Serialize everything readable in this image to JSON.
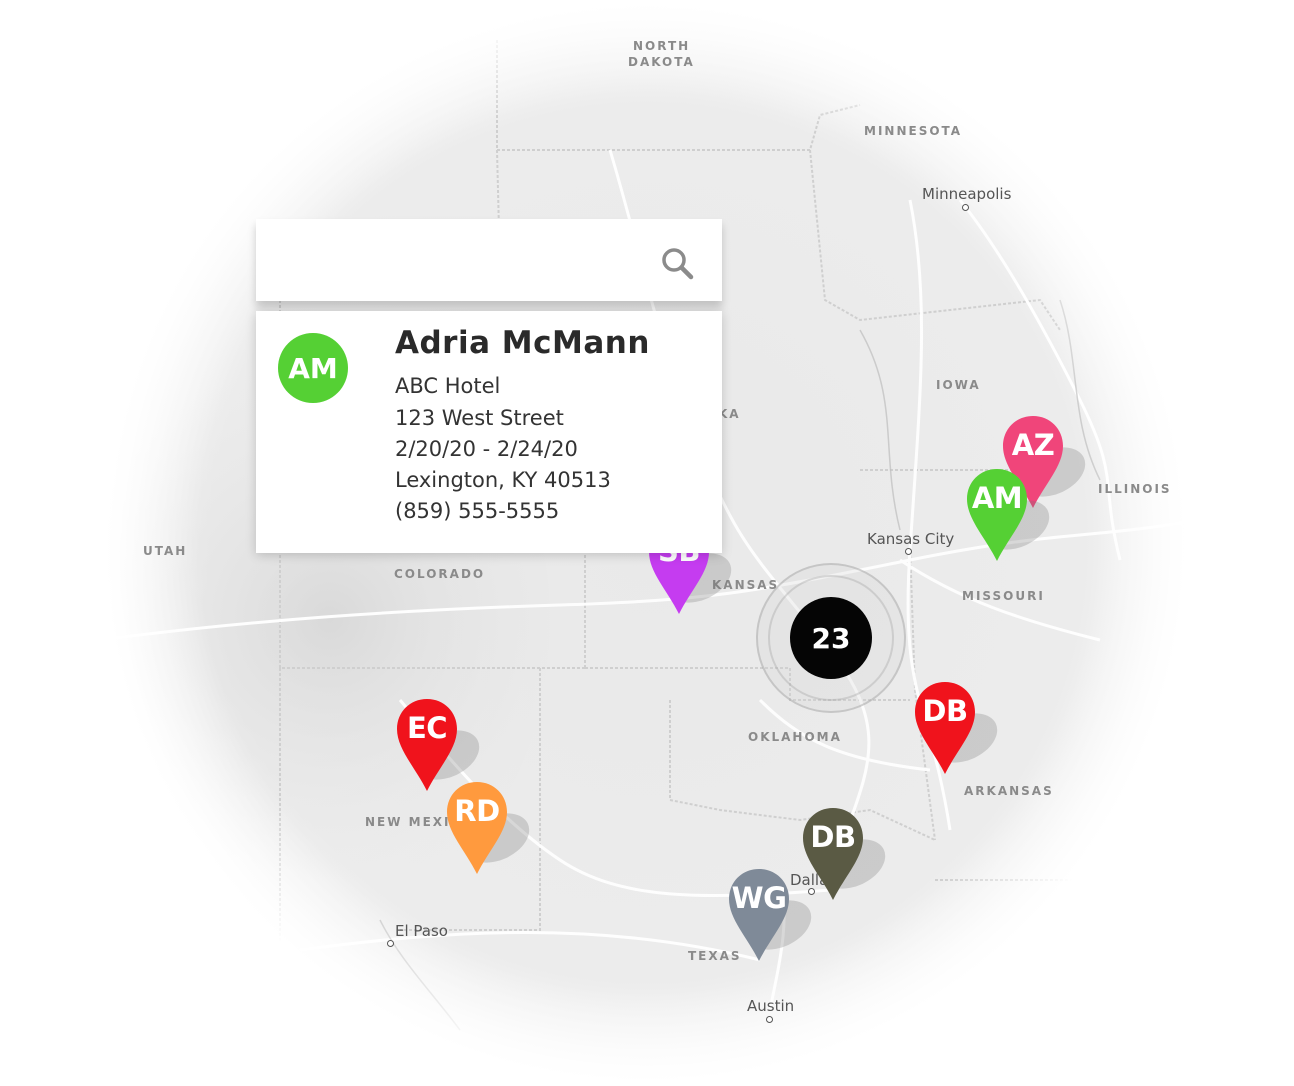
{
  "map": {
    "state_labels": [
      "NORTH",
      "DAKOTA",
      "MINNESOTA",
      "IOWA",
      "ILLINOIS",
      "UTAH",
      "COLORADO",
      "KANSAS",
      "MISSOURI",
      "OKLAHOMA",
      "ARKANSAS",
      "NEW MEXICO",
      "TEXAS",
      "KA"
    ],
    "cities": [
      "Minneapolis",
      "Kansas City",
      "El Paso",
      "Dallas",
      "Austin"
    ]
  },
  "search": {
    "placeholder": "",
    "value": ""
  },
  "contact_card": {
    "initials": "AM",
    "name": "Adria McMann",
    "hotel": "ABC Hotel",
    "street": "123 West Street",
    "dates": "2/20/20 - 2/24/20",
    "city_state_zip": "Lexington, KY 40513",
    "phone": "(859) 555-5555",
    "avatar_color": "#55d034"
  },
  "pins": [
    {
      "initials": "AZ",
      "color": "#f0457a"
    },
    {
      "initials": "AM",
      "color": "#55d034"
    },
    {
      "initials": "SB",
      "color": "#c53cf0"
    },
    {
      "initials": "DB",
      "color": "#f0131c"
    },
    {
      "initials": "EC",
      "color": "#f0131c"
    },
    {
      "initials": "RD",
      "color": "#ff9a3e"
    },
    {
      "initials": "DB",
      "color": "#5a5a44"
    },
    {
      "initials": "WG",
      "color": "#7f8a98"
    }
  ],
  "cluster": {
    "count": "23",
    "color": "#050505"
  }
}
